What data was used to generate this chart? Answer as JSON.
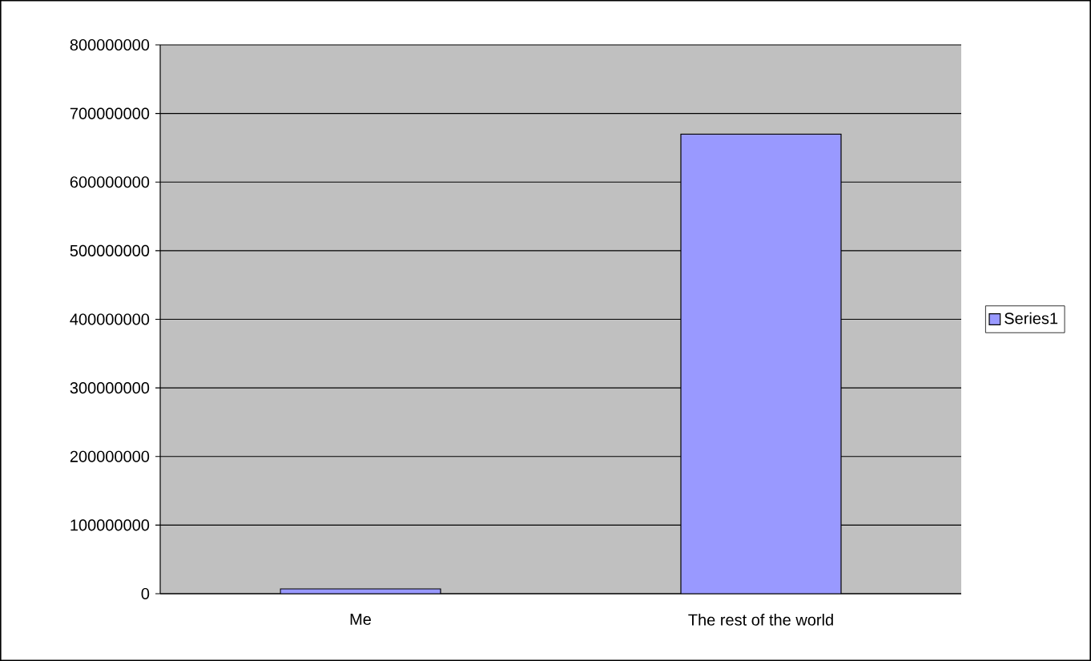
{
  "chart_data": {
    "type": "bar",
    "categories": [
      "Me",
      "The rest of the world"
    ],
    "series": [
      {
        "name": "Series1",
        "color": "#9999ff",
        "values": [
          7000000,
          670000000
        ]
      }
    ],
    "ylim": [
      0,
      800000000
    ],
    "yticks": [
      0,
      100000000,
      200000000,
      300000000,
      400000000,
      500000000,
      600000000,
      700000000,
      800000000
    ],
    "grid": "y",
    "legend": "right"
  }
}
